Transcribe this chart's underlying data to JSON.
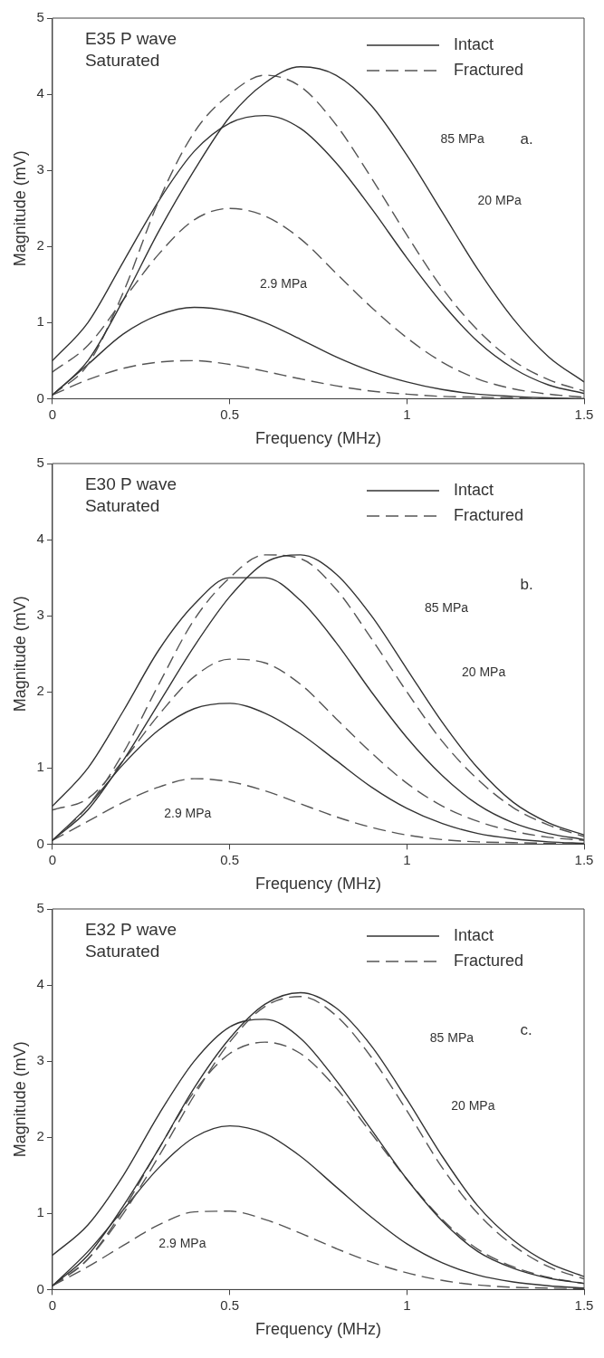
{
  "chart_data": [
    {
      "type": "line",
      "title": "E35 P wave",
      "subtitle": "Saturated",
      "xlabel": "Frequency (MHz)",
      "ylabel": "Magnitude (mV)",
      "xlim": [
        0,
        1.5
      ],
      "xticks": [
        0,
        0.5,
        1,
        1.5
      ],
      "ylim": [
        0,
        5
      ],
      "yticks": [
        0,
        1,
        2,
        3,
        4,
        5
      ],
      "grid": false,
      "legend": "top right",
      "marker": "none",
      "x": [
        0,
        0.1,
        0.2,
        0.3,
        0.4,
        0.5,
        0.6,
        0.7,
        0.8,
        0.9,
        1.0,
        1.1,
        1.2,
        1.3,
        1.4,
        1.5
      ],
      "series": [
        {
          "name": "Intact",
          "color": "#333333",
          "line_style": "solid",
          "values": [
            0.05,
            0.5,
            1.3,
            2.2,
            3.0,
            3.7,
            4.15,
            4.36,
            4.25,
            3.85,
            3.2,
            2.45,
            1.7,
            1.05,
            0.55,
            0.22
          ]
        },
        {
          "name": "Fractured",
          "color": "#555555",
          "line_style": "dashed",
          "values": [
            0.05,
            0.45,
            1.4,
            2.6,
            3.5,
            4.0,
            4.25,
            4.1,
            3.6,
            2.9,
            2.15,
            1.45,
            0.9,
            0.5,
            0.25,
            0.1
          ]
        },
        {
          "color": "#333333",
          "line_style": "solid",
          "values": [
            0.5,
            1.0,
            1.8,
            2.6,
            3.25,
            3.62,
            3.72,
            3.55,
            3.1,
            2.5,
            1.85,
            1.25,
            0.75,
            0.4,
            0.18,
            0.07
          ]
        },
        {
          "color": "#555555",
          "line_style": "dashed",
          "values": [
            0.35,
            0.7,
            1.3,
            1.9,
            2.35,
            2.5,
            2.4,
            2.1,
            1.65,
            1.2,
            0.8,
            0.48,
            0.26,
            0.13,
            0.06,
            0.02
          ]
        },
        {
          "color": "#333333",
          "line_style": "solid",
          "values": [
            0.05,
            0.45,
            0.85,
            1.1,
            1.2,
            1.15,
            1.0,
            0.78,
            0.55,
            0.36,
            0.22,
            0.12,
            0.06,
            0.03,
            0.01,
            0
          ]
        },
        {
          "color": "#555555",
          "line_style": "dashed",
          "values": [
            0.05,
            0.25,
            0.4,
            0.48,
            0.5,
            0.45,
            0.36,
            0.26,
            0.17,
            0.1,
            0.06,
            0.03,
            0.02,
            0.01,
            0,
            0
          ]
        }
      ],
      "annotations": [
        "85 MPa",
        "20 MPa",
        "2.9 MPa",
        "a."
      ]
    },
    {
      "type": "line",
      "title": "E30 P wave",
      "subtitle": "Saturated",
      "xlabel": "Frequency (MHz)",
      "ylabel": "Magnitude (mV)",
      "xlim": [
        0,
        1.5
      ],
      "xticks": [
        0,
        0.5,
        1,
        1.5
      ],
      "ylim": [
        0,
        5
      ],
      "yticks": [
        0,
        1,
        2,
        3,
        4,
        5
      ],
      "grid": false,
      "legend": "top right",
      "marker": "none",
      "x": [
        0,
        0.1,
        0.2,
        0.3,
        0.4,
        0.5,
        0.6,
        0.7,
        0.8,
        0.9,
        1.0,
        1.1,
        1.2,
        1.3,
        1.4,
        1.5
      ],
      "series": [
        {
          "name": "Intact",
          "color": "#333333",
          "line_style": "solid",
          "values": [
            0.05,
            0.45,
            1.1,
            1.85,
            2.6,
            3.25,
            3.7,
            3.8,
            3.55,
            3.0,
            2.3,
            1.6,
            1.0,
            0.55,
            0.28,
            0.12
          ]
        },
        {
          "name": "Fractured",
          "color": "#555555",
          "line_style": "dashed",
          "values": [
            0.05,
            0.5,
            1.2,
            2.1,
            2.95,
            3.5,
            3.8,
            3.75,
            3.35,
            2.7,
            2.0,
            1.35,
            0.85,
            0.48,
            0.25,
            0.1
          ]
        },
        {
          "color": "#333333",
          "line_style": "solid",
          "values": [
            0.5,
            1.0,
            1.75,
            2.55,
            3.15,
            3.5,
            3.5,
            3.2,
            2.65,
            2.0,
            1.4,
            0.9,
            0.52,
            0.28,
            0.14,
            0.06
          ]
        },
        {
          "color": "#555555",
          "line_style": "dashed",
          "values": [
            0.45,
            0.6,
            1.1,
            1.7,
            2.2,
            2.43,
            2.38,
            2.1,
            1.65,
            1.2,
            0.8,
            0.5,
            0.3,
            0.17,
            0.09,
            0.05
          ]
        },
        {
          "color": "#333333",
          "line_style": "solid",
          "values": [
            0.05,
            0.5,
            1.05,
            1.5,
            1.78,
            1.85,
            1.72,
            1.45,
            1.1,
            0.75,
            0.47,
            0.27,
            0.14,
            0.07,
            0.03,
            0.01
          ]
        },
        {
          "color": "#555555",
          "line_style": "dashed",
          "values": [
            0.05,
            0.3,
            0.55,
            0.75,
            0.86,
            0.82,
            0.7,
            0.53,
            0.36,
            0.22,
            0.12,
            0.06,
            0.03,
            0.02,
            0.01,
            0
          ]
        }
      ],
      "annotations": [
        "85 MPa",
        "20 MPa",
        "2.9 MPa",
        "b."
      ]
    },
    {
      "type": "line",
      "title": "E32 P wave",
      "subtitle": "Saturated",
      "xlabel": "Frequency (MHz)",
      "ylabel": "Magnitude (mV)",
      "xlim": [
        0,
        1.5
      ],
      "xticks": [
        0,
        0.5,
        1,
        1.5
      ],
      "ylim": [
        0,
        5
      ],
      "yticks": [
        0,
        1,
        2,
        3,
        4,
        5
      ],
      "grid": false,
      "legend": "top right",
      "marker": "none",
      "x": [
        0,
        0.1,
        0.2,
        0.3,
        0.4,
        0.5,
        0.6,
        0.7,
        0.8,
        0.9,
        1.0,
        1.1,
        1.2,
        1.3,
        1.4,
        1.5
      ],
      "series": [
        {
          "name": "Intact",
          "color": "#333333",
          "line_style": "solid",
          "values": [
            0.05,
            0.45,
            1.1,
            1.85,
            2.65,
            3.3,
            3.75,
            3.9,
            3.7,
            3.2,
            2.5,
            1.75,
            1.1,
            0.65,
            0.35,
            0.17
          ]
        },
        {
          "name": "Fractured",
          "color": "#555555",
          "line_style": "dashed",
          "values": [
            0.05,
            0.4,
            1.0,
            1.75,
            2.55,
            3.25,
            3.72,
            3.85,
            3.6,
            3.05,
            2.35,
            1.6,
            1.0,
            0.58,
            0.3,
            0.14
          ]
        },
        {
          "color": "#333333",
          "line_style": "solid",
          "values": [
            0.45,
            0.85,
            1.5,
            2.3,
            3.0,
            3.45,
            3.55,
            3.3,
            2.75,
            2.1,
            1.45,
            0.9,
            0.5,
            0.28,
            0.15,
            0.08
          ]
        },
        {
          "color": "#555555",
          "line_style": "dashed",
          "values": [
            0.05,
            0.4,
            1.05,
            1.85,
            2.6,
            3.1,
            3.25,
            3.1,
            2.65,
            2.05,
            1.45,
            0.92,
            0.53,
            0.3,
            0.16,
            0.08
          ]
        },
        {
          "color": "#333333",
          "line_style": "solid",
          "values": [
            0.05,
            0.5,
            1.05,
            1.6,
            2.0,
            2.15,
            2.05,
            1.75,
            1.35,
            0.95,
            0.6,
            0.35,
            0.19,
            0.1,
            0.05,
            0.02
          ]
        },
        {
          "color": "#555555",
          "line_style": "dashed",
          "values": [
            0.05,
            0.3,
            0.58,
            0.85,
            1.02,
            1.03,
            0.92,
            0.74,
            0.54,
            0.36,
            0.22,
            0.12,
            0.06,
            0.03,
            0.02,
            0.01
          ]
        }
      ],
      "annotations": [
        "85 MPa",
        "20 MPa",
        "2.9 MPa",
        "c."
      ]
    }
  ]
}
